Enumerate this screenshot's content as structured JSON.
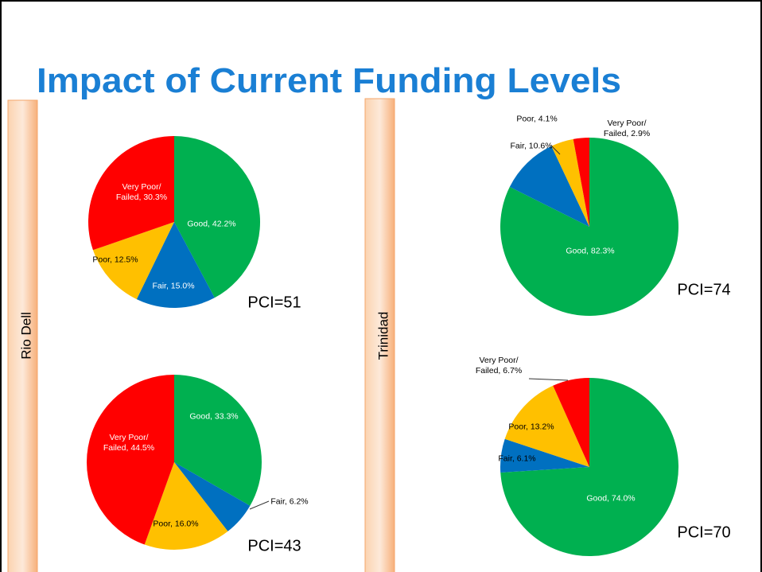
{
  "title": "Impact of Current Funding Levels",
  "side_labels": [
    "Rio Dell",
    "Trinidad"
  ],
  "chart_data": [
    {
      "type": "pie",
      "values": [
        42.2,
        15.0,
        12.5,
        30.3
      ],
      "value_labels": [
        "Good, 42.2%",
        "Fair, 15.0%",
        "Poor, 12.5%",
        "Very Poor/\nFailed, 30.3%"
      ],
      "colors": [
        "#00b050",
        "#0070c0",
        "#ffc000",
        "#ff0000"
      ],
      "annotation": "PCI=51"
    },
    {
      "type": "pie",
      "values": [
        33.3,
        6.2,
        16.0,
        44.5
      ],
      "value_labels": [
        "Good, 33.3%",
        "Fair, 6.2%",
        "Poor, 16.0%",
        "Very Poor/\nFailed, 44.5%"
      ],
      "colors": [
        "#00b050",
        "#0070c0",
        "#ffc000",
        "#ff0000"
      ],
      "annotation": "PCI=43"
    },
    {
      "type": "pie",
      "values": [
        82.3,
        10.6,
        4.1,
        2.9
      ],
      "value_labels": [
        "Good, 82.3%",
        "Fair, 10.6%",
        "Poor, 4.1%",
        "Very Poor/\nFailed, 2.9%"
      ],
      "colors": [
        "#00b050",
        "#0070c0",
        "#ffc000",
        "#ff0000"
      ],
      "annotation": "PCI=74"
    },
    {
      "type": "pie",
      "values": [
        74.0,
        6.1,
        13.2,
        6.7
      ],
      "value_labels": [
        "Good, 74.0%",
        "Fair, 6.1%",
        "Poor, 13.2%",
        "Very Poor/\nFailed, 6.7%"
      ],
      "colors": [
        "#00b050",
        "#0070c0",
        "#ffc000",
        "#ff0000"
      ],
      "annotation": "PCI=70"
    }
  ]
}
